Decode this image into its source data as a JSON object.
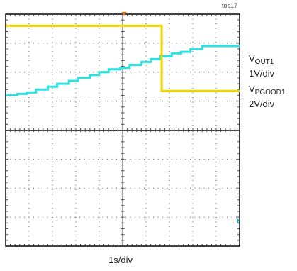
{
  "figure_tag": "toc17",
  "channels": [
    {
      "name": "V",
      "sub": "OUT1",
      "scale": "1V/div",
      "color": "#2ee0e0"
    },
    {
      "name": "V",
      "sub": "PGOOD1",
      "scale": "2V/div",
      "color": "#f0d400"
    }
  ],
  "chart_data": {
    "type": "line",
    "title": "",
    "xlabel": "1s/div",
    "ylabel": "",
    "grid": true,
    "x_divisions": 10,
    "y_divisions": 8,
    "xlim": [
      0,
      10
    ],
    "ylim": [
      0,
      8
    ],
    "series": [
      {
        "name": "VOUT1",
        "color": "#2ee0e0",
        "x": [
          0,
          0.5,
          0.5,
          0.9,
          0.9,
          1.3,
          1.3,
          1.8,
          1.8,
          2.2,
          2.2,
          2.7,
          2.7,
          3.1,
          3.1,
          3.6,
          3.6,
          4.0,
          4.0,
          4.4,
          4.4,
          4.9,
          4.9,
          5.3,
          5.3,
          5.8,
          5.8,
          6.2,
          6.2,
          6.6,
          6.6,
          7.1,
          7.1,
          7.5,
          7.5,
          7.9,
          7.9,
          8.4,
          8.4,
          10
        ],
        "y": [
          5.2,
          5.2,
          5.25,
          5.25,
          5.3,
          5.3,
          5.4,
          5.4,
          5.5,
          5.5,
          5.6,
          5.6,
          5.7,
          5.7,
          5.8,
          5.8,
          5.9,
          5.9,
          6.0,
          6.0,
          6.1,
          6.1,
          6.15,
          6.15,
          6.25,
          6.25,
          6.35,
          6.35,
          6.45,
          6.45,
          6.55,
          6.55,
          6.65,
          6.65,
          6.7,
          6.7,
          6.8,
          6.8,
          6.9,
          6.9
        ]
      },
      {
        "name": "VPGOOD1",
        "color": "#f0d400",
        "x": [
          0,
          6.67,
          6.67,
          10
        ],
        "y": [
          7.6,
          7.6,
          5.35,
          5.35
        ]
      }
    ]
  }
}
